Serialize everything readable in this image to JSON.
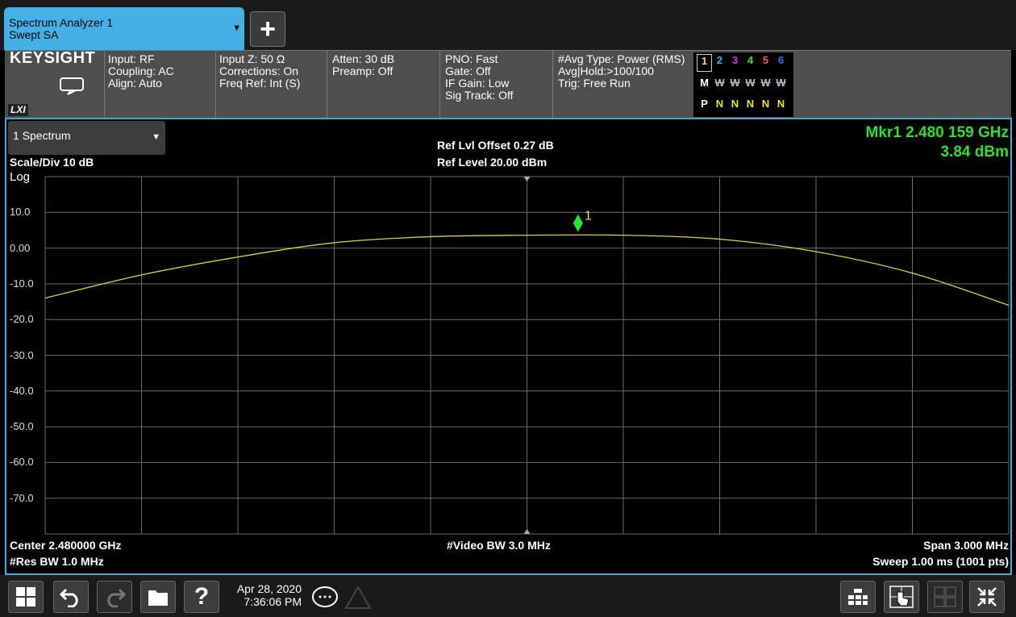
{
  "tab": {
    "line1": "Spectrum Analyzer 1",
    "line2": "Swept SA",
    "add_label": "+"
  },
  "brand": {
    "name": "KEYSIGHT",
    "lxi": "LXI"
  },
  "settings": {
    "input": [
      "Input: RF",
      "Coupling: AC",
      "Align: Auto"
    ],
    "input_z": [
      "Input Z: 50 Ω",
      "Corrections: On",
      "Freq Ref: Int (S)"
    ],
    "atten": [
      "Atten: 30 dB",
      "Preamp: Off"
    ],
    "pno": [
      "PNO: Fast",
      "Gate: Off",
      "IF Gain: Low",
      "Sig Track: Off"
    ],
    "avg": [
      "#Avg Type: Power (RMS)",
      "Avg|Hold:>100/100",
      "Trig: Free Run"
    ]
  },
  "traces": {
    "numbers": [
      "1",
      "2",
      "3",
      "4",
      "5",
      "6"
    ],
    "number_colors": [
      "#e8e62a",
      "#2fb4ff",
      "#e02fe0",
      "#2fe02f",
      "#ff5050",
      "#3070ff"
    ],
    "mode_prefix": "M",
    "modes": [
      "W",
      "W",
      "W",
      "W",
      "W"
    ],
    "det_prefix": "P",
    "detectors": [
      "N",
      "N",
      "N",
      "N",
      "N"
    ]
  },
  "window": {
    "name": "1 Spectrum",
    "scale_div": "Scale/Div 10 dB",
    "log": "Log",
    "ref_offset": "Ref Lvl Offset 0.27 dB",
    "ref_level": "Ref Level 20.00 dBm",
    "marker_freq": "Mkr1  2.480 159 GHz",
    "marker_amp": "3.84 dBm",
    "center": "Center 2.480000 GHz",
    "res_bw": "#Res BW 1.0 MHz",
    "video_bw": "#Video BW 3.0 MHz",
    "span": "Span 3.000 MHz",
    "sweep": "Sweep 1.00 ms (1001 pts)",
    "marker_label": "1"
  },
  "chart_data": {
    "type": "line",
    "title": "",
    "xlabel": "",
    "ylabel": "",
    "ylim": [
      -80,
      20
    ],
    "y_ticks": [
      "10.0",
      "0.00",
      "-10.0",
      "-20.0",
      "-30.0",
      "-40.0",
      "-50.0",
      "-60.0",
      "-70.0"
    ],
    "x_range_mhz": [
      2478.5,
      2481.5
    ],
    "grid": true,
    "series": [
      {
        "color": "#d8d23a",
        "x": [
          2478.5,
          2478.8,
          2479.1,
          2479.4,
          2479.7,
          2480.0,
          2480.3,
          2480.6,
          2480.9,
          2481.2,
          2481.5
        ],
        "values": [
          -14.0,
          -7.5,
          -2.5,
          1.5,
          3.2,
          3.6,
          3.6,
          2.5,
          -1.0,
          -7.0,
          -16.0
        ]
      }
    ],
    "marker": {
      "x": 2480.159,
      "y": 3.84,
      "color": "#2fe02f"
    }
  },
  "taskbar": {
    "date": "Apr 28, 2020",
    "time": "7:36:06 PM",
    "help": "?"
  }
}
